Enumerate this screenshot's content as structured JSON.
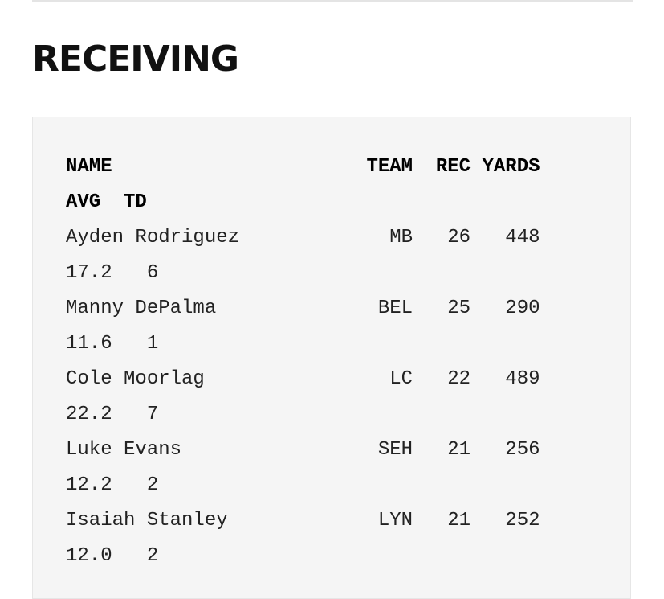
{
  "section": {
    "title": "RECEIVING"
  },
  "table": {
    "header_line_1": "NAME                      TEAM  REC YARDS",
    "header_line_2": "AVG  TD",
    "rows": [
      {
        "line_1": "Ayden Rodriguez             MB   26   448",
        "line_2": "17.2   6"
      },
      {
        "line_1": "Manny DePalma              BEL   25   290",
        "line_2": "11.6   1"
      },
      {
        "line_1": "Cole Moorlag                LC   22   489",
        "line_2": "22.2   7"
      },
      {
        "line_1": "Luke Evans                 SEH   21   256",
        "line_2": "12.2   2"
      },
      {
        "line_1": "Isaiah Stanley             LYN   21   252",
        "line_2": "12.0   2"
      }
    ]
  }
}
